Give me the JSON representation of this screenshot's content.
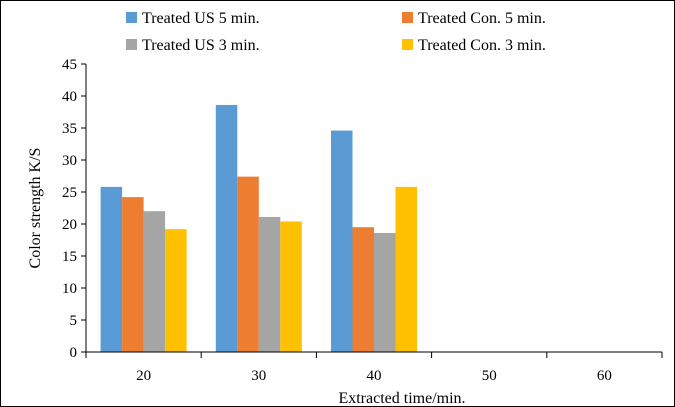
{
  "chart_data": {
    "type": "bar",
    "title": "",
    "xlabel": "Extracted time/min.",
    "ylabel": "Color strength K/S",
    "categories": [
      "20",
      "30",
      "40",
      "50",
      "60"
    ],
    "ylim": [
      0,
      45
    ],
    "yticks": [
      0,
      5,
      10,
      15,
      20,
      25,
      30,
      35,
      40,
      45
    ],
    "grid": false,
    "legend": "top",
    "series": [
      {
        "name": "Treated US 5 min.",
        "color": "#5B9BD5",
        "values": [
          25.8,
          38.6,
          34.6,
          null,
          null
        ]
      },
      {
        "name": "Treated Con. 5 min.",
        "color": "#ED7D31",
        "values": [
          24.2,
          27.4,
          19.5,
          null,
          null
        ]
      },
      {
        "name": "Treated US 3 min.",
        "color": "#A5A5A5",
        "values": [
          22.0,
          21.1,
          18.6,
          null,
          null
        ]
      },
      {
        "name": "Treated Con. 3 min.",
        "color": "#FFC000",
        "values": [
          19.2,
          20.4,
          25.8,
          null,
          null
        ]
      }
    ]
  }
}
